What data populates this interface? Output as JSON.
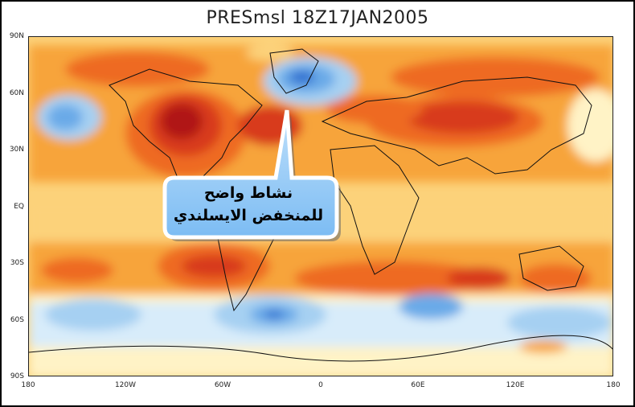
{
  "map": {
    "title": "PRESmsl  18Z17JAN2005",
    "y_ticks": [
      "90N",
      "60N",
      "30N",
      "EQ",
      "30S",
      "60S",
      "90S"
    ],
    "x_ticks": [
      "180",
      "120W",
      "60W",
      "0",
      "60E",
      "120E",
      "180"
    ],
    "colors": {
      "deep_red": "#b01818",
      "red": "#d83a1a",
      "orange_red": "#ee6a20",
      "orange": "#f7a43a",
      "light_orange": "#fcd27a",
      "pale_yellow": "#fff3c6",
      "pale_blue": "#d8ecfa",
      "light_blue": "#a6d0f2",
      "blue": "#6aaae8",
      "dark_blue": "#2f6fd0"
    }
  },
  "callout": {
    "line1": "نشاط واضح",
    "line2": "للمنخفض الايسلندي"
  }
}
